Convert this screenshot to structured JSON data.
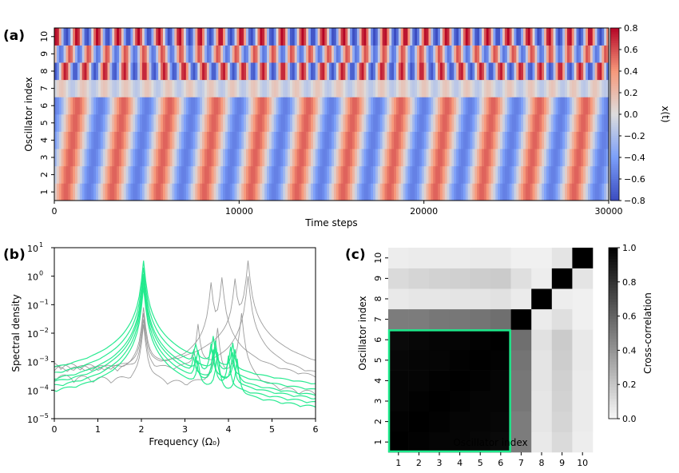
{
  "figure": {
    "panel_labels": [
      "(a)",
      "(b)",
      "(c)"
    ]
  },
  "chart_data": [
    {
      "panel": "(a)",
      "type": "heatmap",
      "xlabel": "Time steps",
      "ylabel": "Oscillator index",
      "x_ticks": [
        0,
        10000,
        20000,
        30000
      ],
      "x_tick_labels": [
        "0",
        "10000",
        "20000",
        "30000"
      ],
      "xlim": [
        0,
        30000
      ],
      "y_tick_labels": [
        "1",
        "2",
        "3",
        "4",
        "5",
        "6",
        "7",
        "8",
        "9",
        "10"
      ],
      "colorbar": {
        "label": "x(t)",
        "range": [
          -0.8,
          0.8
        ],
        "ticks": [
          0.8,
          0.6,
          0.4,
          0.2,
          0.0,
          -0.2,
          -0.4,
          -0.6,
          -0.8
        ],
        "tick_labels": [
          "0.8",
          "0.6",
          "0.4",
          "0.2",
          "0.0",
          "−0.2",
          "−0.4",
          "−0.6",
          "−0.8"
        ],
        "colormap": "coolwarm",
        "colors": [
          "#3b4cc0",
          "#dddddd",
          "#b40426"
        ]
      },
      "rows": [
        {
          "index": 1,
          "amplitude": 0.55,
          "cycles": 12,
          "phase_delay": 0.0
        },
        {
          "index": 2,
          "amplitude": 0.55,
          "cycles": 12,
          "phase_delay": 0.05
        },
        {
          "index": 3,
          "amplitude": 0.55,
          "cycles": 12,
          "phase_delay": 0.1
        },
        {
          "index": 4,
          "amplitude": 0.55,
          "cycles": 12,
          "phase_delay": 0.15
        },
        {
          "index": 5,
          "amplitude": 0.55,
          "cycles": 12,
          "phase_delay": 0.2
        },
        {
          "index": 6,
          "amplitude": 0.55,
          "cycles": 12,
          "phase_delay": 0.25
        },
        {
          "index": 7,
          "amplitude": 0.15,
          "cycles": 26,
          "phase_delay": 0.1
        },
        {
          "index": 8,
          "amplitude": 0.75,
          "cycles": 28,
          "phase_delay": 0.3
        },
        {
          "index": 9,
          "amplitude": 0.6,
          "cycles": 30,
          "phase_delay": 0.6
        },
        {
          "index": 10,
          "amplitude": 0.8,
          "cycles": 27,
          "phase_delay": 0.85
        }
      ]
    },
    {
      "panel": "(b)",
      "type": "line",
      "xlabel": "Frequency (Ω₀)",
      "ylabel": "Spectral density",
      "xlim": [
        0,
        6
      ],
      "ylim": [
        1e-05,
        10
      ],
      "y_scale": "log",
      "x_ticks": [
        0,
        1,
        2,
        3,
        4,
        5,
        6
      ],
      "y_ticks": [
        1e-05,
        0.0001,
        0.001,
        0.01,
        0.1,
        1,
        10
      ],
      "y_tick_labels": [
        "10",
        "10",
        "10",
        "10",
        "10",
        "10",
        "10"
      ],
      "y_tick_exponents": [
        "−5",
        "−4",
        "−3",
        "−2",
        "−1",
        "0",
        "1"
      ],
      "series_colors": {
        "synchronized": "#1de98b",
        "other": "#8c8c8c"
      },
      "series": [
        {
          "group": "synchronized",
          "peaks": [
            [
              2.05,
              3.5
            ],
            [
              3.25,
              0.0025
            ],
            [
              3.65,
              0.007
            ],
            [
              4.1,
              0.004
            ]
          ],
          "base": 0.0001
        },
        {
          "group": "synchronized",
          "peaks": [
            [
              2.05,
              2.0
            ],
            [
              3.2,
              0.0015
            ],
            [
              3.7,
              0.005
            ],
            [
              4.05,
              0.003
            ]
          ],
          "base": 8e-05
        },
        {
          "group": "synchronized",
          "peaks": [
            [
              2.05,
              1.2
            ],
            [
              3.3,
              0.002
            ],
            [
              3.6,
              0.004
            ],
            [
              4.15,
              0.0025
            ]
          ],
          "base": 6e-05
        },
        {
          "group": "synchronized",
          "peaks": [
            [
              2.05,
              0.9
            ],
            [
              3.2,
              0.001
            ],
            [
              3.7,
              0.003
            ],
            [
              4.1,
              0.002
            ]
          ],
          "base": 5e-05
        },
        {
          "group": "synchronized",
          "peaks": [
            [
              2.05,
              0.6
            ],
            [
              3.25,
              0.0012
            ],
            [
              3.65,
              0.0025
            ],
            [
              4.0,
              0.0015
            ]
          ],
          "base": 4e-05
        },
        {
          "group": "synchronized",
          "peaks": [
            [
              2.05,
              0.4
            ],
            [
              3.3,
              0.0009
            ],
            [
              3.75,
              0.002
            ],
            [
              4.2,
              0.0012
            ]
          ],
          "base": 3e-05
        },
        {
          "group": "other",
          "peaks": [
            [
              2.05,
              0.08
            ],
            [
              3.6,
              0.6
            ],
            [
              3.85,
              0.9
            ]
          ],
          "base": 0.0004
        },
        {
          "group": "other",
          "peaks": [
            [
              2.05,
              0.05
            ],
            [
              4.15,
              0.8
            ],
            [
              4.45,
              3.5
            ]
          ],
          "base": 0.0003
        },
        {
          "group": "other",
          "peaks": [
            [
              2.05,
              0.03
            ],
            [
              3.3,
              0.02
            ],
            [
              4.45,
              1.0
            ]
          ],
          "base": 0.0005
        },
        {
          "group": "other",
          "peaks": [
            [
              2.05,
              0.02
            ],
            [
              3.75,
              0.015
            ],
            [
              4.3,
              0.05
            ]
          ],
          "base": 0.0002
        }
      ]
    },
    {
      "panel": "(c)",
      "type": "heatmap",
      "xlabel": "Oscillator index",
      "ylabel": "Oscillator index",
      "x_tick_labels": [
        "1",
        "2",
        "3",
        "4",
        "5",
        "6",
        "7",
        "8",
        "9",
        "10"
      ],
      "y_tick_labels": [
        "1",
        "2",
        "3",
        "4",
        "5",
        "6",
        "7",
        "8",
        "9",
        "10"
      ],
      "colorbar": {
        "label": "Cross-correlation",
        "range": [
          0,
          1
        ],
        "ticks": [
          1.0,
          0.8,
          0.6,
          0.4,
          0.2,
          0.0
        ],
        "tick_labels": [
          "1.0",
          "0.8",
          "0.6",
          "0.4",
          "0.2",
          "0.0"
        ],
        "colormap": "gray_r"
      },
      "highlight": {
        "rows": [
          1,
          6
        ],
        "cols": [
          1,
          6
        ],
        "color": "#1de98b"
      },
      "matrix": [
        [
          1.0,
          0.99,
          0.98,
          0.98,
          0.97,
          0.96,
          0.5,
          0.06,
          0.12,
          0.04
        ],
        [
          0.99,
          1.0,
          0.99,
          0.98,
          0.98,
          0.97,
          0.5,
          0.07,
          0.14,
          0.05
        ],
        [
          0.98,
          0.99,
          1.0,
          0.99,
          0.98,
          0.98,
          0.52,
          0.07,
          0.15,
          0.05
        ],
        [
          0.98,
          0.98,
          0.99,
          1.0,
          0.99,
          0.98,
          0.52,
          0.08,
          0.16,
          0.05
        ],
        [
          0.97,
          0.98,
          0.98,
          0.99,
          1.0,
          0.99,
          0.53,
          0.08,
          0.17,
          0.06
        ],
        [
          0.96,
          0.97,
          0.98,
          0.98,
          0.99,
          1.0,
          0.55,
          0.09,
          0.18,
          0.06
        ],
        [
          0.5,
          0.5,
          0.52,
          0.52,
          0.53,
          0.55,
          1.0,
          0.05,
          0.1,
          0.03
        ],
        [
          0.06,
          0.07,
          0.07,
          0.08,
          0.08,
          0.09,
          0.05,
          1.0,
          0.04,
          0.03
        ],
        [
          0.12,
          0.14,
          0.15,
          0.16,
          0.17,
          0.18,
          0.1,
          0.04,
          1.0,
          0.08
        ],
        [
          0.04,
          0.05,
          0.05,
          0.05,
          0.06,
          0.06,
          0.03,
          0.03,
          0.08,
          1.0
        ]
      ]
    }
  ]
}
